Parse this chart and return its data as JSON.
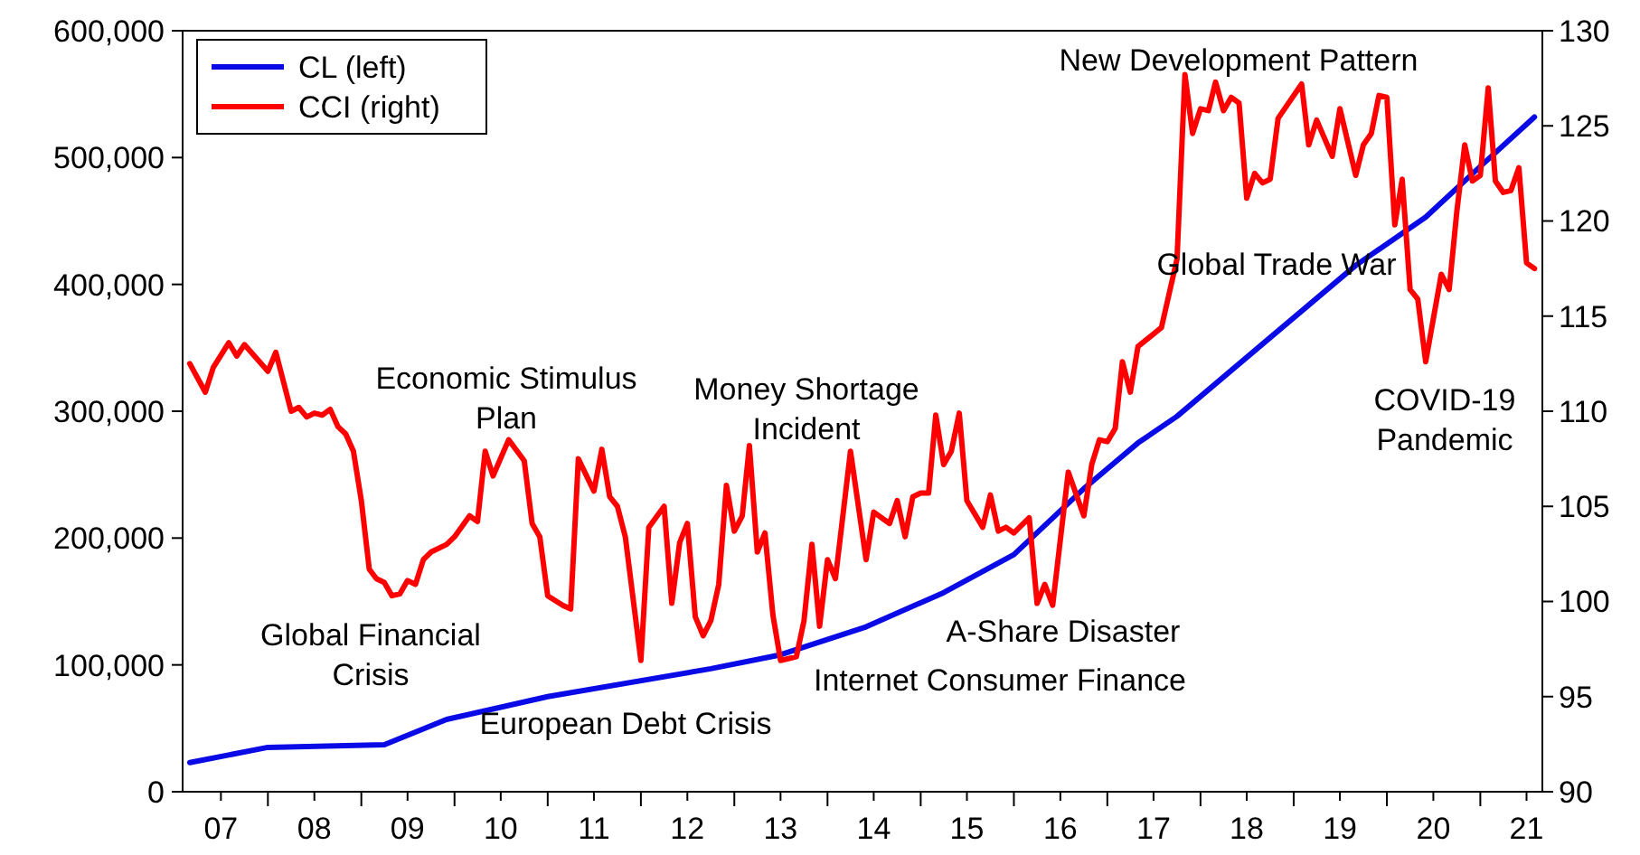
{
  "chart_data": {
    "type": "line",
    "legend": "top left",
    "grid": false,
    "marker": "none",
    "line_style": "solid",
    "xlim": [
      "2007-02",
      "2021-09"
    ],
    "xticks": [
      {
        "value": "2007-07",
        "label": "07"
      },
      {
        "value": "2008-01",
        "label": null
      },
      {
        "value": "2008-07",
        "label": "08"
      },
      {
        "value": "2009-01",
        "label": null
      },
      {
        "value": "2009-07",
        "label": "09"
      },
      {
        "value": "2010-01",
        "label": null
      },
      {
        "value": "2010-07",
        "label": "10"
      },
      {
        "value": "2011-01",
        "label": null
      },
      {
        "value": "2011-07",
        "label": "11"
      },
      {
        "value": "2012-01",
        "label": null
      },
      {
        "value": "2012-07",
        "label": "12"
      },
      {
        "value": "2013-01",
        "label": null
      },
      {
        "value": "2013-07",
        "label": "13"
      },
      {
        "value": "2014-01",
        "label": null
      },
      {
        "value": "2014-07",
        "label": "14"
      },
      {
        "value": "2015-01",
        "label": null
      },
      {
        "value": "2015-07",
        "label": "15"
      },
      {
        "value": "2016-01",
        "label": null
      },
      {
        "value": "2016-07",
        "label": "16"
      },
      {
        "value": "2017-01",
        "label": null
      },
      {
        "value": "2017-07",
        "label": "17"
      },
      {
        "value": "2018-01",
        "label": null
      },
      {
        "value": "2018-07",
        "label": "18"
      },
      {
        "value": "2019-01",
        "label": null
      },
      {
        "value": "2019-07",
        "label": "19"
      },
      {
        "value": "2020-01",
        "label": null
      },
      {
        "value": "2020-07",
        "label": "20"
      },
      {
        "value": "2021-01",
        "label": null
      },
      {
        "value": "2021-07",
        "label": "21"
      }
    ],
    "ylim": [
      0,
      600000
    ],
    "yticks": [
      {
        "value": 0,
        "label": "0"
      },
      {
        "value": 100000,
        "label": "100,000"
      },
      {
        "value": 200000,
        "label": "200,000"
      },
      {
        "value": 300000,
        "label": "300,000"
      },
      {
        "value": 400000,
        "label": "400,000"
      },
      {
        "value": 500000,
        "label": "500,000"
      },
      {
        "value": 600000,
        "label": "600,000"
      }
    ],
    "y2lim": [
      90,
      130
    ],
    "y2ticks": [
      90,
      95,
      100,
      105,
      110,
      115,
      120,
      125,
      130
    ],
    "series": [
      {
        "name": "CL (left)",
        "color": "#0a0ae6",
        "x": [
          "2007-03",
          "2008-01",
          "2009-04",
          "2009-12",
          "2011-01",
          "2012-10",
          "2013-07",
          "2014-06",
          "2015-04",
          "2016-01",
          "2016-10",
          "2017-05",
          "2017-10",
          "2018-09",
          "2019-09",
          "2020-06",
          "2021-01",
          "2021-08"
        ],
        "values": [
          23000,
          35000,
          37000,
          57000,
          75000,
          97000,
          108000,
          130000,
          157000,
          187000,
          239000,
          275000,
          296000,
          353000,
          415000,
          453000,
          493000,
          532000
        ]
      },
      {
        "name": "CCI (right)",
        "color": "#ff0000",
        "axis": "y2",
        "x": [
          "2007-03",
          "2007-05",
          "2007-06",
          "2007-08",
          "2007-09",
          "2007-10",
          "2008-01",
          "2008-02",
          "2008-04",
          "2008-05",
          "2008-06",
          "2008-07",
          "2008-08",
          "2008-09",
          "2008-10",
          "2008-11",
          "2008-12",
          "2009-01",
          "2009-02",
          "2009-03",
          "2009-04",
          "2009-05",
          "2009-06",
          "2009-07",
          "2009-08",
          "2009-09",
          "2009-10",
          "2009-12",
          "2010-01",
          "2010-03",
          "2010-04",
          "2010-05",
          "2010-06",
          "2010-08",
          "2010-10",
          "2010-11",
          "2010-12",
          "2011-01",
          "2011-03",
          "2011-04",
          "2011-05",
          "2011-07",
          "2011-08",
          "2011-09",
          "2011-10",
          "2011-11",
          "2012-01",
          "2012-02",
          "2012-04",
          "2012-05",
          "2012-06",
          "2012-07",
          "2012-08",
          "2012-09",
          "2012-10",
          "2012-11",
          "2012-12",
          "2013-01",
          "2013-02",
          "2013-03",
          "2013-04",
          "2013-05",
          "2013-06",
          "2013-07",
          "2013-09",
          "2013-10",
          "2013-11",
          "2013-12",
          "2014-01",
          "2014-02",
          "2014-04",
          "2014-06",
          "2014-07",
          "2014-09",
          "2014-10",
          "2014-11",
          "2014-12",
          "2015-01",
          "2015-02",
          "2015-03",
          "2015-04",
          "2015-05",
          "2015-06",
          "2015-07",
          "2015-09",
          "2015-10",
          "2015-11",
          "2015-12",
          "2016-01",
          "2016-03",
          "2016-04",
          "2016-05",
          "2016-06",
          "2016-08",
          "2016-10",
          "2016-11",
          "2016-12",
          "2017-01",
          "2017-02",
          "2017-03",
          "2017-04",
          "2017-05",
          "2017-08",
          "2017-10",
          "2017-11",
          "2017-12",
          "2018-01",
          "2018-02",
          "2018-03",
          "2018-04",
          "2018-05",
          "2018-06",
          "2018-07",
          "2018-08",
          "2018-09",
          "2018-10",
          "2018-11",
          "2019-02",
          "2019-03",
          "2019-04",
          "2019-06",
          "2019-07",
          "2019-09",
          "2019-10",
          "2019-11",
          "2019-12",
          "2020-01",
          "2020-02",
          "2020-03",
          "2020-04",
          "2020-05",
          "2020-06",
          "2020-08",
          "2020-09",
          "2020-10",
          "2020-11",
          "2020-12",
          "2021-01",
          "2021-02",
          "2021-03",
          "2021-04",
          "2021-05",
          "2021-06",
          "2021-07",
          "2021-08"
        ],
        "values": [
          112.5,
          111.0,
          112.3,
          113.6,
          112.9,
          113.5,
          112.1,
          113.1,
          110.0,
          110.2,
          109.7,
          109.9,
          109.8,
          110.1,
          109.2,
          108.8,
          107.9,
          105.3,
          101.7,
          101.2,
          101.0,
          100.3,
          100.4,
          101.1,
          100.9,
          102.2,
          102.6,
          103.0,
          103.4,
          104.5,
          104.2,
          107.9,
          106.6,
          108.5,
          107.4,
          104.1,
          103.4,
          100.3,
          99.8,
          99.6,
          107.5,
          105.8,
          108.0,
          105.5,
          105.0,
          103.4,
          96.9,
          103.9,
          105.0,
          99.9,
          103.1,
          104.1,
          99.2,
          98.2,
          99.0,
          100.9,
          106.1,
          103.7,
          104.5,
          108.2,
          102.6,
          103.6,
          99.3,
          96.9,
          97.1,
          99.0,
          103.0,
          98.7,
          102.2,
          101.2,
          107.9,
          102.2,
          104.7,
          104.1,
          105.3,
          103.4,
          105.5,
          105.7,
          105.7,
          109.8,
          107.2,
          107.9,
          109.9,
          105.3,
          103.9,
          105.6,
          103.7,
          103.9,
          103.6,
          104.4,
          99.9,
          100.9,
          99.8,
          106.8,
          104.5,
          107.2,
          108.5,
          108.4,
          109.1,
          112.6,
          111.0,
          113.4,
          114.4,
          118.0,
          127.7,
          124.6,
          125.9,
          125.8,
          127.3,
          125.8,
          126.5,
          126.2,
          121.2,
          122.5,
          122.0,
          122.2,
          125.4,
          127.2,
          124.0,
          125.3,
          123.4,
          125.9,
          122.4,
          124.0,
          124.6,
          126.6,
          126.5,
          119.8,
          122.2,
          116.4,
          115.9,
          112.6,
          117.2,
          116.4,
          120.5,
          124.0,
          122.1,
          122.4,
          127.0,
          122.1,
          121.5,
          121.6,
          122.8,
          117.8,
          117.5
        ]
      }
    ],
    "annotations": [
      "Global Financial\nCrisis",
      "Economic Stimulus\nPlan",
      "Money Shortage\nIncident",
      "European Debt Crisis",
      "Internet Consumer Finance",
      "A-Share Disaster",
      "New Development Pattern",
      "Global Trade War",
      "COVID-19\nPandemic"
    ]
  }
}
